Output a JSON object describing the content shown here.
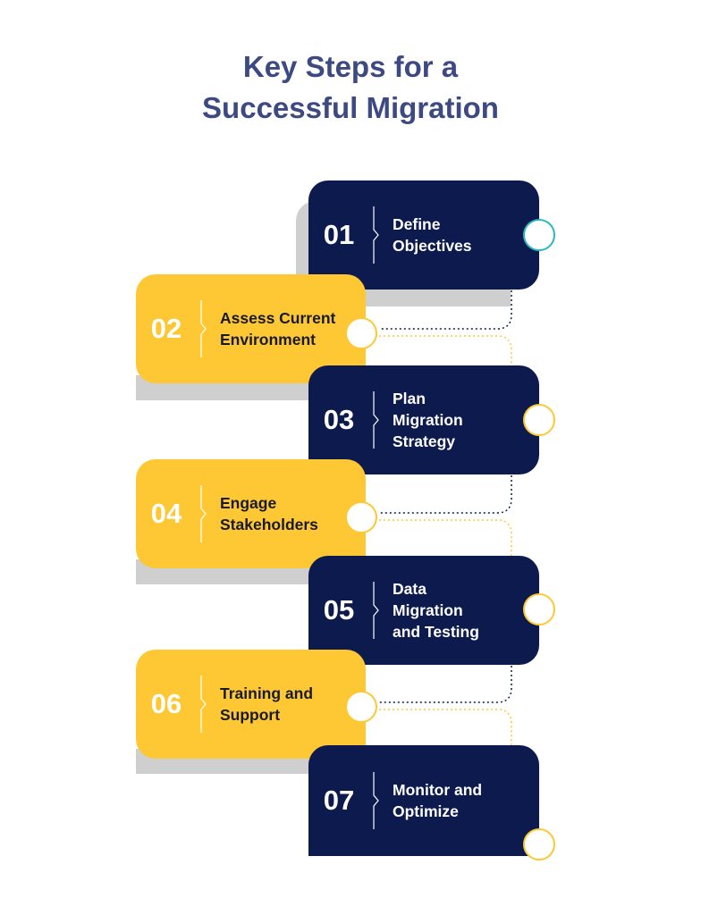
{
  "title": {
    "line1": "Key Steps for a",
    "line2": "Successful Migration"
  },
  "colors": {
    "navy": "#0d1a4e",
    "yellow": "#fdc833",
    "title": "#3d4a82",
    "shadow": "#d0d0d0",
    "teal": "#2bb7c4"
  },
  "steps": [
    {
      "number": "01",
      "label": "Define\nObjectives",
      "color": "navy"
    },
    {
      "number": "02",
      "label": "Assess Current\nEnvironment",
      "color": "yellow"
    },
    {
      "number": "03",
      "label": "Plan\nMigration\nStrategy",
      "color": "navy"
    },
    {
      "number": "04",
      "label": "Engage\nStakeholders",
      "color": "yellow"
    },
    {
      "number": "05",
      "label": "Data\nMigration\nand Testing",
      "color": "navy"
    },
    {
      "number": "06",
      "label": "Training and\nSupport",
      "color": "yellow"
    },
    {
      "number": "07",
      "label": "Monitor and\nOptimize",
      "color": "navy"
    }
  ]
}
